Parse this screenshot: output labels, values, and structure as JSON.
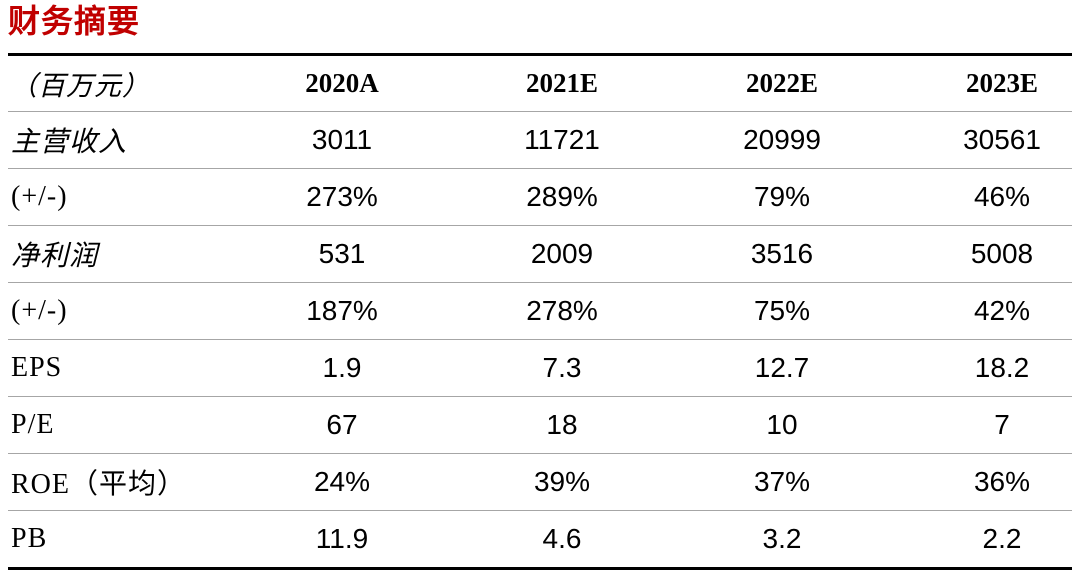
{
  "title": "财务摘要",
  "accent_color": "#c00000",
  "table": {
    "unit_label": "（百万元）",
    "columns": [
      "2020A",
      "2021E",
      "2022E",
      "2023E"
    ],
    "rows": [
      {
        "label": "主营收入",
        "values": [
          "3011",
          "11721",
          "20999",
          "30561"
        ]
      },
      {
        "label": "(+/-)",
        "values": [
          "273%",
          "289%",
          "79%",
          "46%"
        ]
      },
      {
        "label": "净利润",
        "values": [
          "531",
          "2009",
          "3516",
          "5008"
        ]
      },
      {
        "label": "(+/-)",
        "values": [
          "187%",
          "278%",
          "75%",
          "42%"
        ]
      },
      {
        "label": "EPS",
        "values": [
          "1.9",
          "7.3",
          "12.7",
          "18.2"
        ]
      },
      {
        "label": "P/E",
        "values": [
          "67",
          "18",
          "10",
          "7"
        ]
      },
      {
        "label": "ROE（平均）",
        "values": [
          "24%",
          "39%",
          "37%",
          "36%"
        ]
      },
      {
        "label": "PB",
        "values": [
          "11.9",
          "4.6",
          "3.2",
          "2.2"
        ]
      }
    ]
  }
}
